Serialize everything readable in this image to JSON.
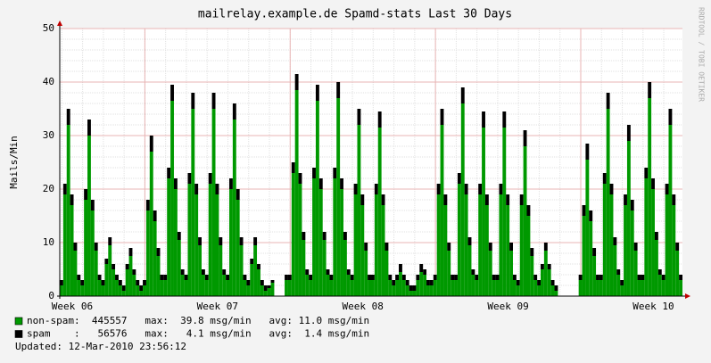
{
  "chart_data": {
    "type": "stacked_bar",
    "title": "mailrelay.example.de Spamd-stats Last 30 Days",
    "y_label": "Mails/Min",
    "credit": "RRDTOOL / TOBI OETIKER",
    "updated": "Updated: 12-Mar-2010 23:56:12",
    "grid": true,
    "xlim": [
      0,
      720
    ],
    "ylim": [
      0,
      50
    ],
    "yticks": [
      0,
      10,
      20,
      30,
      40,
      50
    ],
    "xticks": [
      {
        "value": 14.4,
        "label": "Week 06"
      },
      {
        "value": 182.4,
        "label": "Week 07"
      },
      {
        "value": 350.4,
        "label": "Week 08"
      },
      {
        "value": 518.4,
        "label": "Week 09"
      },
      {
        "value": 686.4,
        "label": "Week 10"
      }
    ],
    "x_major_grid": [
      98.4,
      266.4,
      434.4,
      602.4
    ],
    "x": [
      0,
      4,
      8,
      12,
      16,
      20,
      24,
      28,
      32,
      36,
      40,
      44,
      48,
      52,
      56,
      60,
      64,
      68,
      72,
      76,
      80,
      84,
      88,
      92,
      96,
      100,
      104,
      108,
      112,
      116,
      120,
      124,
      128,
      132,
      136,
      140,
      144,
      148,
      152,
      156,
      160,
      164,
      168,
      172,
      176,
      180,
      184,
      188,
      192,
      196,
      200,
      204,
      208,
      212,
      216,
      220,
      224,
      228,
      232,
      236,
      240,
      244,
      248,
      252,
      256,
      260,
      264,
      268,
      272,
      276,
      280,
      284,
      288,
      292,
      296,
      300,
      304,
      308,
      312,
      316,
      320,
      324,
      328,
      332,
      336,
      340,
      344,
      348,
      352,
      356,
      360,
      364,
      368,
      372,
      376,
      380,
      384,
      388,
      392,
      396,
      400,
      404,
      408,
      412,
      416,
      420,
      424,
      428,
      432,
      436,
      440,
      444,
      448,
      452,
      456,
      460,
      464,
      468,
      472,
      476,
      480,
      484,
      488,
      492,
      496,
      500,
      504,
      508,
      512,
      516,
      520,
      524,
      528,
      532,
      536,
      540,
      544,
      548,
      552,
      556,
      560,
      564,
      568,
      572,
      576,
      580,
      584,
      588,
      592,
      596,
      600,
      604,
      608,
      612,
      616,
      620,
      624,
      628,
      632,
      636,
      640,
      644,
      648,
      652,
      656,
      660,
      664,
      668,
      672,
      676,
      680,
      684,
      688,
      692,
      696,
      700,
      704,
      708,
      712,
      716
    ],
    "series": [
      {
        "name": "non-spam",
        "stats": ":  445557   max:  39.8 msg/min   avg: 11.0 msg/min",
        "color": "#009900",
        "values": [
          2,
          19,
          32,
          17,
          8.5,
          3,
          2,
          18,
          30,
          16,
          8.5,
          3,
          2,
          6,
          9.5,
          5,
          3,
          2,
          1,
          5,
          7.5,
          4,
          2,
          1,
          2,
          16,
          27,
          14,
          7.5,
          3,
          3,
          22,
          36.5,
          20,
          10.5,
          4,
          3,
          21,
          35,
          19,
          9.5,
          4,
          3,
          21,
          35,
          19,
          9.5,
          4,
          3,
          20,
          33,
          18,
          9.5,
          3,
          2,
          6,
          9.5,
          5,
          2,
          1,
          1.5,
          2.5,
          0,
          0,
          0,
          3,
          3,
          23,
          38.5,
          21,
          10.5,
          4,
          3,
          22,
          36.5,
          20,
          10.5,
          4,
          3,
          22,
          37,
          20,
          10.5,
          4,
          3,
          19,
          32,
          17,
          8.5,
          3,
          3,
          19,
          31.5,
          17,
          8.5,
          3,
          2,
          3,
          4.5,
          3,
          2,
          1,
          1,
          3,
          4.5,
          4,
          2,
          2,
          3,
          19,
          32,
          17,
          8.5,
          3,
          3,
          21,
          36,
          19,
          9.5,
          4,
          3,
          19,
          31.5,
          17,
          8.5,
          3,
          3,
          19,
          31.5,
          17,
          8.5,
          3,
          2,
          17,
          28,
          15,
          7.5,
          3,
          2,
          5,
          8.5,
          5,
          2,
          1,
          0,
          0,
          0,
          0,
          0,
          0,
          3,
          15,
          25.5,
          14,
          7.5,
          3,
          3,
          21,
          35,
          19,
          9.5,
          4,
          2,
          17,
          29,
          16,
          8.5,
          3,
          3,
          22,
          37,
          20,
          10.5,
          4,
          3,
          19,
          32,
          17,
          8.5,
          3
        ]
      },
      {
        "name": "spam",
        "stats": ":   56576   max:   4.1 msg/min   avg:  1.4 msg/min",
        "color": "#000000",
        "values": [
          1,
          2,
          3,
          2,
          1.5,
          1,
          1,
          2,
          3,
          2,
          1.5,
          1,
          1,
          1,
          1.5,
          1,
          1,
          1,
          1,
          1,
          1.5,
          1,
          1,
          1,
          1,
          2,
          3,
          2,
          1.5,
          1,
          1,
          2,
          3,
          2,
          1.5,
          1,
          1,
          2,
          3,
          2,
          1.5,
          1,
          1,
          2,
          3,
          2,
          1.5,
          1,
          1,
          2,
          3,
          2,
          1.5,
          1,
          1,
          1,
          1.5,
          1,
          1,
          1,
          0.5,
          0.5,
          0,
          0,
          0,
          1,
          1,
          2,
          3,
          2,
          1.5,
          1,
          1,
          2,
          3,
          2,
          1.5,
          1,
          1,
          2,
          3,
          2,
          1.5,
          1,
          1,
          2,
          3,
          2,
          1.5,
          1,
          1,
          2,
          3,
          2,
          1.5,
          1,
          1,
          1,
          1.5,
          1,
          1,
          1,
          1,
          1,
          1.5,
          1,
          1,
          1,
          1,
          2,
          3,
          2,
          1.5,
          1,
          1,
          2,
          3,
          2,
          1.5,
          1,
          1,
          2,
          3,
          2,
          1.5,
          1,
          1,
          2,
          3,
          2,
          1.5,
          1,
          1,
          2,
          3,
          2,
          1.5,
          1,
          1,
          1,
          1.5,
          1,
          1,
          1,
          0,
          0,
          0,
          0,
          0,
          0,
          1,
          2,
          3,
          2,
          1.5,
          1,
          1,
          2,
          3,
          2,
          1.5,
          1,
          1,
          2,
          3,
          2,
          1.5,
          1,
          1,
          2,
          3,
          2,
          1.5,
          1,
          1,
          2,
          3,
          2,
          1.5,
          1
        ]
      }
    ]
  }
}
